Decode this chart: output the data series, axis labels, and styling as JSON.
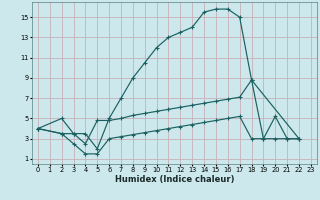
{
  "xlabel": "Humidex (Indice chaleur)",
  "bg_color": "#cce8ec",
  "grid_color_major": "#b8d4d8",
  "grid_color_minor": "#d4e8ec",
  "line_color": "#1a6060",
  "xlim": [
    -0.5,
    23.5
  ],
  "ylim": [
    0.5,
    16.5
  ],
  "xticks": [
    0,
    1,
    2,
    3,
    4,
    5,
    6,
    7,
    8,
    9,
    10,
    11,
    12,
    13,
    14,
    15,
    16,
    17,
    18,
    19,
    20,
    21,
    22,
    23
  ],
  "yticks": [
    1,
    3,
    5,
    7,
    9,
    11,
    13,
    15
  ],
  "curve1_x": [
    0,
    2,
    3,
    4,
    5,
    6,
    7,
    8,
    9,
    10,
    11,
    12,
    13,
    14,
    15,
    16,
    17,
    18,
    22
  ],
  "curve1_y": [
    4,
    5,
    3.5,
    3.5,
    2,
    5,
    7,
    9,
    10.5,
    12,
    13,
    13.5,
    14,
    15.5,
    15.8,
    15.8,
    15.0,
    8.8,
    3.0
  ],
  "curve2_x": [
    0,
    2,
    3,
    4,
    5,
    6,
    7,
    8,
    9,
    10,
    11,
    12,
    13,
    14,
    15,
    16,
    17,
    18,
    19,
    20,
    21,
    22
  ],
  "curve2_y": [
    4,
    3.5,
    3.5,
    2.5,
    4.8,
    4.8,
    5.0,
    5.3,
    5.5,
    5.7,
    5.9,
    6.1,
    6.3,
    6.5,
    6.7,
    6.9,
    7.1,
    8.8,
    3.0,
    5.2,
    3.0,
    3.0
  ],
  "curve3_x": [
    0,
    2,
    3,
    4,
    5,
    6,
    7,
    8,
    9,
    10,
    11,
    12,
    13,
    14,
    15,
    16,
    17,
    18,
    19,
    20,
    21,
    22
  ],
  "curve3_y": [
    4,
    3.5,
    2.5,
    1.5,
    1.5,
    3.0,
    3.2,
    3.4,
    3.6,
    3.8,
    4.0,
    4.2,
    4.4,
    4.6,
    4.8,
    5.0,
    5.2,
    3.0,
    3.0,
    3.0,
    3.0,
    3.0
  ],
  "markersize": 2.0
}
